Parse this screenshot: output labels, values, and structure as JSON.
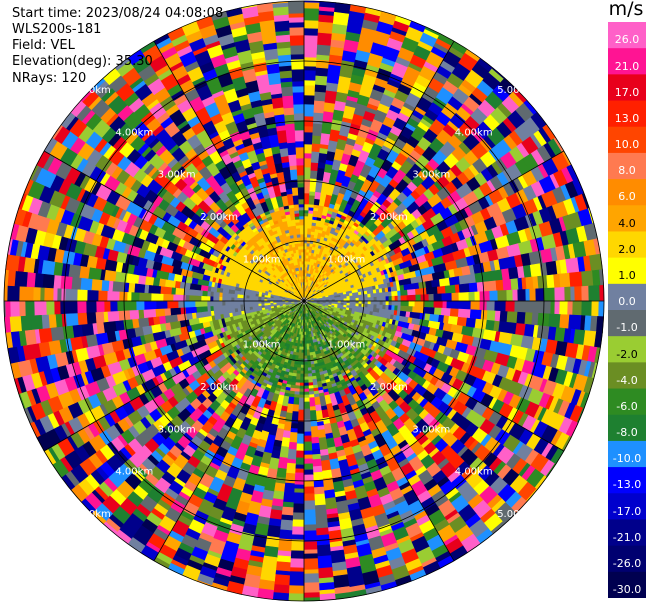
{
  "header": {
    "start_time": "Start time: 2023/08/24 04:08:08",
    "instrument": "WLS200s-181",
    "field": "Field: VEL",
    "elevation": "Elevation(deg): 35.30",
    "nrays": "NRays: 120"
  },
  "colorbar": {
    "unit": "m/s",
    "levels": [
      26.0,
      21.0,
      17.0,
      13.0,
      10.0,
      8.0,
      6.0,
      4.0,
      2.0,
      1.0,
      0.0,
      -1.0,
      -2.0,
      -4.0,
      -6.0,
      -8.0,
      -10.0,
      -13.0,
      -17.0,
      -21.0,
      -26.0,
      -30.0
    ],
    "tick_labels": [
      "26.0",
      "21.0",
      "17.0",
      "13.0",
      "10.0",
      "8.0",
      "6.0",
      "4.0",
      "2.0",
      "1.0",
      "0.0",
      "-1.0",
      "-2.0",
      "-4.0",
      "-6.0",
      "-8.0",
      "-10.0",
      "-13.0",
      "-17.0",
      "-21.0",
      "-26.0",
      "-30.0"
    ],
    "colors": [
      "#ff60c8",
      "#ff1493",
      "#e8001c",
      "#ff2000",
      "#ff4500",
      "#ff7a50",
      "#ff8c00",
      "#ffa500",
      "#ffd700",
      "#ffff00",
      "#7080a0",
      "#606a70",
      "#9acd32",
      "#6b8e23",
      "#2e8b22",
      "#1e8030",
      "#1e90ff",
      "#0000ff",
      "#0000cd",
      "#00008b",
      "#000070",
      "#000050"
    ]
  },
  "chart_data": {
    "type": "heatmap",
    "plot_kind": "PPI (plan position indicator) radial velocity scan",
    "field": "VEL",
    "unit": "m/s",
    "elevation_deg": 35.3,
    "nrays": 120,
    "range_rings_km": [
      1.0,
      2.0,
      3.0,
      4.0,
      5.0
    ],
    "range_ring_labels": [
      "1.00km",
      "2.00km",
      "3.00km",
      "4.00km",
      "5.00km"
    ],
    "max_range_km": 5.0,
    "spokes_deg": [
      0,
      30,
      60,
      90,
      120,
      150,
      180,
      210,
      240,
      270,
      300,
      330
    ],
    "vmin": -30.0,
    "vmax": 26.0,
    "pattern": {
      "signal_range_km": 1.6,
      "north_sector_velocity_ms": [
        2.0,
        6.0
      ],
      "south_sector_velocity_ms": [
        -8.0,
        -1.0
      ],
      "east_west_velocity_ms": [
        0.0,
        0.0
      ],
      "beyond_signal": "noise"
    }
  }
}
